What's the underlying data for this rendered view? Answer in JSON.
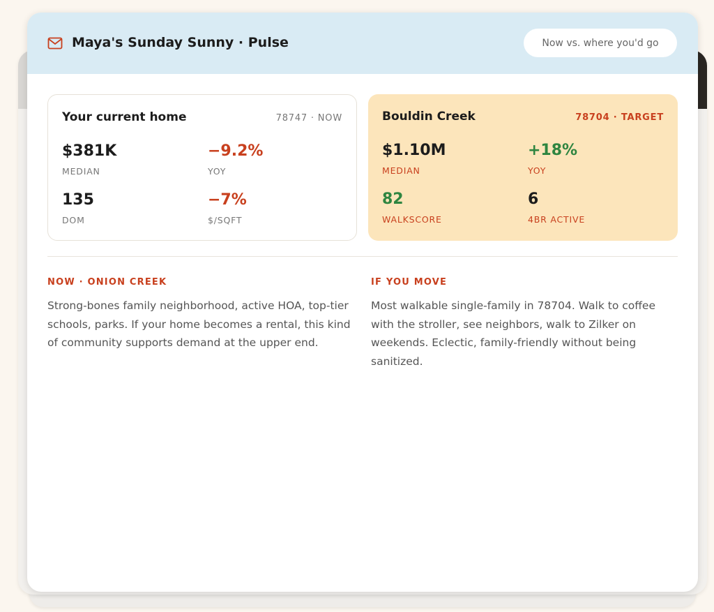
{
  "header": {
    "title": "Maya's Sunday Sunny · Pulse",
    "tag": "Now vs. where you'd go"
  },
  "current": {
    "title": "Your current home",
    "meta": "78747 · NOW",
    "stats": [
      {
        "value": "$381K",
        "label": "MEDIAN"
      },
      {
        "value": "−9.2%",
        "label": "YOY"
      },
      {
        "value": "135",
        "label": "DOM"
      },
      {
        "value": "−7%",
        "label": "$/SQFT"
      }
    ]
  },
  "target": {
    "title": "Bouldin Creek",
    "meta": "78704 · TARGET",
    "stats": [
      {
        "value": "$1.10M",
        "label": "MEDIAN"
      },
      {
        "value": "+18%",
        "label": "YOY"
      },
      {
        "value": "82",
        "label": "WALKSCORE"
      },
      {
        "value": "6",
        "label": "4BR ACTIVE"
      }
    ]
  },
  "sections": [
    {
      "label": "NOW · ONION CREEK",
      "text": "Strong-bones family neighborhood, active HOA, top-tier schools, parks. If your home becomes a rental, this kind of community supports demand at the upper end."
    },
    {
      "label": "IF YOU MOVE",
      "text": "Most walkable single-family in 78704. Walk to coffee with the stroller, see neighbors, walk to Zilker on weekends. Eclectic, family-friendly without being sanitized."
    }
  ]
}
